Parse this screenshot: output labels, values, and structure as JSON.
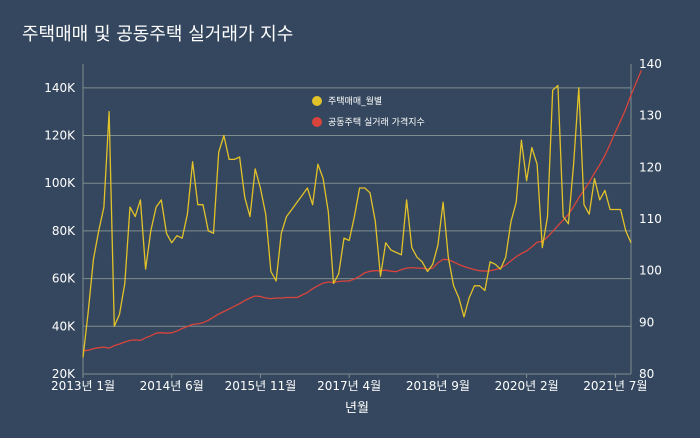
{
  "title": "주택매매 및 공동주택 실거래가 지수",
  "colors": {
    "background": "#34475e",
    "grid": "#7f8c8d",
    "series_transactions": "#e2c229",
    "series_index": "#d9443c",
    "text": "#ffffff"
  },
  "chart_data": {
    "type": "line",
    "title": "주택매매 및 공동주택 실거래가 지수",
    "xlabel": "년월",
    "ylabel_left": "",
    "ylabel_right": "",
    "x_start": "2013-01",
    "x_tick_labels": [
      "2013년 1월",
      "2014년 6월",
      "2015년 11월",
      "2017년 4월",
      "2018년 9월",
      "2020년 2월",
      "2021년 7월"
    ],
    "x_tick_index": [
      0,
      17,
      34,
      51,
      68,
      85,
      102
    ],
    "y_left": {
      "min": 20000,
      "max": 150000,
      "ticks": [
        20000,
        40000,
        60000,
        80000,
        100000,
        120000,
        140000
      ],
      "tick_labels": [
        "20K",
        "40K",
        "60K",
        "80K",
        "100K",
        "120K",
        "140K"
      ]
    },
    "y_right": {
      "min": 80,
      "max": 140,
      "ticks": [
        80,
        90,
        100,
        110,
        120,
        130,
        140
      ],
      "tick_labels": [
        "80",
        "90",
        "100",
        "110",
        "120",
        "130",
        "140"
      ]
    },
    "legend": [
      "주택매매_월별",
      "공동주택 실거래 가격지수"
    ],
    "series": [
      {
        "name": "주택매매_월별",
        "axis": "left",
        "values": [
          27000,
          46000,
          68000,
          80000,
          90000,
          130000,
          40000,
          45000,
          58000,
          90000,
          86000,
          93000,
          64000,
          80000,
          90000,
          93000,
          79000,
          75000,
          78000,
          77000,
          87000,
          109000,
          91000,
          91000,
          80000,
          79000,
          113000,
          120000,
          110000,
          110000,
          111000,
          94000,
          86000,
          106000,
          98000,
          87000,
          63000,
          59000,
          79000,
          86000,
          89000,
          92000,
          95000,
          98000,
          91000,
          108000,
          102000,
          88000,
          58000,
          62000,
          77000,
          76000,
          86000,
          98000,
          98000,
          96000,
          84000,
          61000,
          75000,
          72000,
          71000,
          70000,
          93000,
          73000,
          69000,
          67000,
          63000,
          66000,
          74000,
          92000,
          69000,
          57000,
          52000,
          44000,
          52000,
          57000,
          57000,
          55000,
          67000,
          66000,
          64000,
          69000,
          84000,
          92000,
          118000,
          101000,
          115000,
          108000,
          73000,
          86000,
          139000,
          141000,
          86000,
          83000,
          108000,
          140000,
          91000,
          87000,
          102000,
          93000,
          97000,
          89000,
          89000,
          89000,
          80000,
          75000
        ]
      },
      {
        "name": "공동주택 실거래 가격지수",
        "axis": "right",
        "values": [
          84.5,
          84.6,
          84.9,
          85.1,
          85.2,
          85.0,
          85.5,
          85.8,
          86.2,
          86.5,
          86.6,
          86.5,
          87.0,
          87.4,
          87.9,
          88.0,
          87.9,
          88.0,
          88.3,
          88.8,
          89.2,
          89.6,
          89.7,
          89.9,
          90.4,
          91.0,
          91.6,
          92.1,
          92.6,
          93.1,
          93.6,
          94.2,
          94.7,
          95.1,
          95.0,
          94.7,
          94.6,
          94.7,
          94.7,
          94.8,
          94.8,
          94.8,
          95.3,
          95.8,
          96.5,
          97.1,
          97.6,
          97.8,
          97.7,
          97.9,
          98.0,
          98.0,
          98.4,
          98.9,
          99.6,
          99.9,
          100.0,
          100.0,
          100.1,
          99.9,
          99.8,
          100.2,
          100.5,
          100.6,
          100.5,
          100.5,
          100.3,
          100.5,
          101.5,
          102.2,
          102.1,
          101.7,
          101.2,
          100.8,
          100.5,
          100.2,
          100.0,
          99.9,
          100.0,
          100.2,
          100.5,
          101.1,
          101.9,
          102.7,
          103.3,
          103.8,
          104.6,
          105.5,
          105.7,
          106.5,
          107.6,
          108.7,
          109.8,
          110.9,
          112.4,
          114.1,
          115.6,
          117.1,
          118.9,
          120.5,
          122.3,
          124.5,
          126.8,
          129.0,
          131.3,
          134.0,
          136.4,
          138.8
        ]
      }
    ]
  }
}
